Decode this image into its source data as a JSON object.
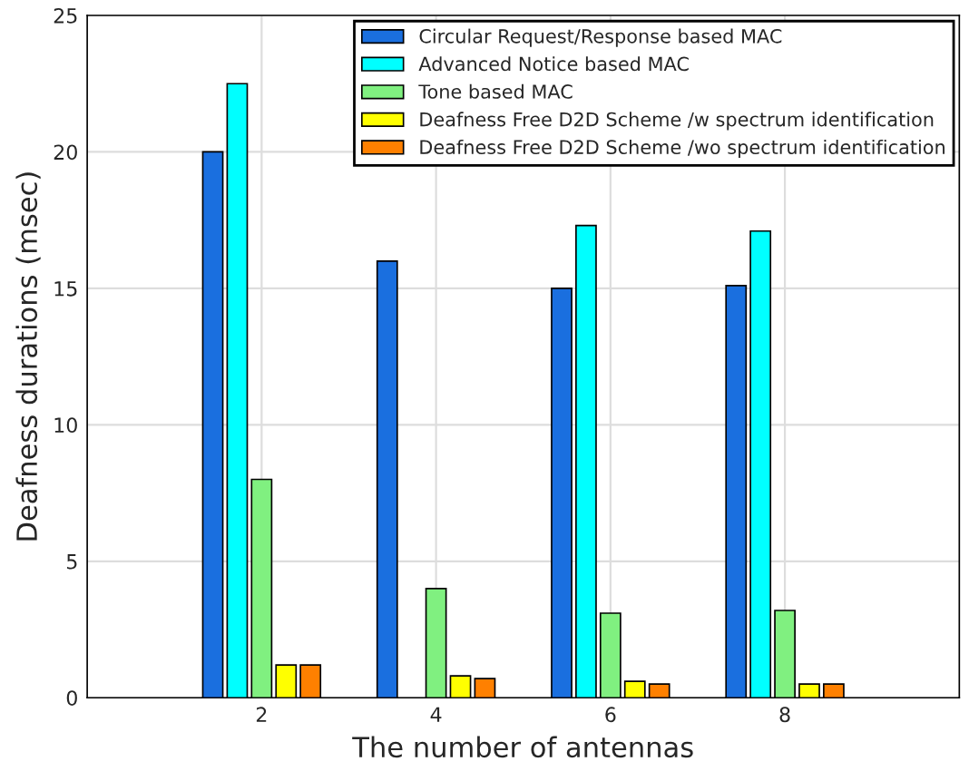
{
  "chart_data": {
    "type": "bar",
    "xlabel": "The number of antennas",
    "ylabel": "Deafness durations (msec)",
    "x": [
      2,
      4,
      6,
      8
    ],
    "xlim": [
      0,
      10
    ],
    "xticks": [
      2,
      4,
      6,
      8
    ],
    "ylim": [
      0,
      25
    ],
    "yticks": [
      0,
      5,
      10,
      15,
      20,
      25
    ],
    "grid": true,
    "legend": "top right",
    "series": [
      {
        "name": "Circular Request/Response based MAC",
        "color": "#1a6fdf",
        "values": [
          20,
          16,
          15,
          15.1
        ]
      },
      {
        "name": "Advanced Notice based MAC",
        "color": "#00ffff",
        "values": [
          22.5,
          null,
          17.3,
          17.1
        ]
      },
      {
        "name": "Tone based MAC",
        "color": "#80f080",
        "values": [
          8,
          4,
          3.1,
          3.2
        ]
      },
      {
        "name": "Deafness Free D2D Scheme /w spectrum identification",
        "color": "#ffff00",
        "values": [
          1.2,
          0.8,
          0.6,
          0.5
        ]
      },
      {
        "name": "Deafness Free D2D Scheme /wo spectrum identification",
        "color": "#ff8000",
        "values": [
          1.2,
          0.7,
          0.5,
          0.5
        ]
      }
    ]
  }
}
